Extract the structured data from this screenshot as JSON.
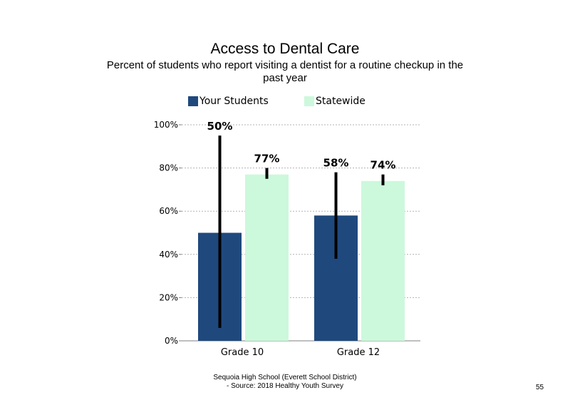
{
  "title": "Access to Dental Care",
  "subtitle": "Percent of students who report visiting a dentist for a routine checkup in the past year",
  "legend": {
    "your_students": "Your Students",
    "statewide": "Statewide"
  },
  "footer": {
    "line1": "Sequoia High School (Everett School District)",
    "line2": "- Source: 2018 Healthy Youth Survey"
  },
  "page_number": "55",
  "colors": {
    "your_students": "#1f497d",
    "statewide": "#ccf8dc",
    "error_bar": "#000000",
    "grid": "#b3b3b3"
  },
  "chart_data": {
    "type": "bar",
    "title": "Access to Dental Care",
    "subtitle": "Percent of students who report visiting a dentist for a routine checkup in the past year",
    "categories": [
      "Grade 10",
      "Grade 12"
    ],
    "series": [
      {
        "name": "Your Students",
        "values": [
          50,
          58
        ],
        "labels": [
          "50%",
          "58%"
        ],
        "error_low": [
          6,
          38
        ],
        "error_high": [
          95,
          78
        ]
      },
      {
        "name": "Statewide",
        "values": [
          77,
          74
        ],
        "labels": [
          "77%",
          "74%"
        ],
        "error_low": [
          75,
          72
        ],
        "error_high": [
          80,
          77
        ]
      }
    ],
    "yticks": [
      "0%",
      "20%",
      "40%",
      "60%",
      "80%",
      "100%"
    ],
    "ylim": [
      0,
      100
    ],
    "xlabel": "",
    "ylabel": "",
    "grid": "dashed horizontal at 20% intervals",
    "legend_position": "top"
  }
}
